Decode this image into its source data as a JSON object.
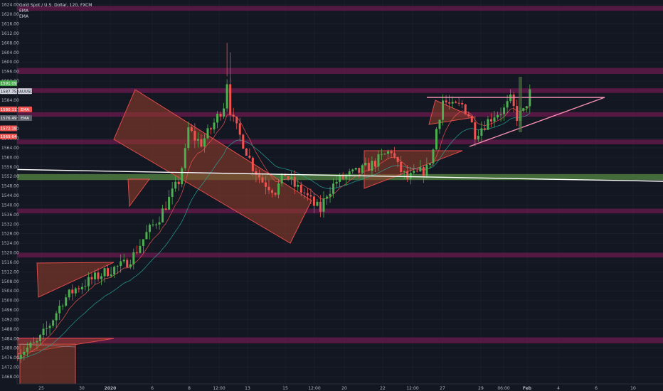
{
  "legend": {
    "symbol_title": "Gold Spot / U.S. Dollar, 120, FXCM",
    "ema1": "EMA",
    "ema2": "EMA"
  },
  "price_labels": [
    {
      "text": "1591.09",
      "price": 1591.09,
      "bg": "#4caf50",
      "fg": "#ffffff"
    },
    {
      "text": "1587.75",
      "price": 1587.75,
      "bg": "#d1d4dc",
      "fg": "#131722"
    },
    {
      "text": "XAUUSD",
      "price": 1587.75,
      "bg": "#d1d4dc",
      "fg": "#131722"
    },
    {
      "text": "1580.11",
      "price": 1580.11,
      "bg": "#ef5350",
      "fg": "#ffffff"
    },
    {
      "text": "EMA",
      "price": 1580.11,
      "bg": "#ef5350",
      "fg": "#ffffff"
    },
    {
      "text": "1576.49",
      "price": 1576.49,
      "bg": "#5d606b",
      "fg": "#ffffff"
    },
    {
      "text": "EMA",
      "price": 1576.49,
      "bg": "#5d606b",
      "fg": "#ffffff"
    },
    {
      "text": "1572.18",
      "price": 1572.18,
      "bg": "#ef5350",
      "fg": "#ffffff"
    },
    {
      "text": "1569.64",
      "price": 1569.64,
      "bg": "#ef5350",
      "fg": "#ffffff"
    }
  ],
  "colors": {
    "background": "#131722",
    "grid": "#1f2330",
    "up_candle": "#4caf50",
    "down_candle": "#ef5350",
    "zone_purple": "#6a1b4d",
    "zone_green": "#4e7a3e",
    "pattern_fill": "#8d3a2a",
    "pattern_line": "#e04a4a",
    "ema_fast": "#ef5350",
    "ema_slow": "#26a69a"
  },
  "chart_data": {
    "type": "candlestick",
    "title": "Gold Spot / U.S. Dollar, 120, FXCM",
    "y_ticks": [
      1624,
      1620,
      1616,
      1612,
      1608,
      1604,
      1600,
      1596,
      1592,
      1588,
      1584,
      1580,
      1576,
      1572,
      1568,
      1564,
      1560,
      1556,
      1552,
      1548,
      1544,
      1540,
      1536,
      1532,
      1528,
      1524,
      1520,
      1516,
      1512,
      1508,
      1504,
      1500,
      1496,
      1492,
      1488,
      1484,
      1480,
      1476,
      1472,
      1468
    ],
    "y_tick_labels": [
      "1624.00",
      "1620.00",
      "1616.00",
      "1612.00",
      "1608.00",
      "1604.00",
      "1600.00",
      "1596.00",
      "1592.00",
      "1588.00",
      "1584.00",
      "1580.00",
      "1576.00",
      "1572.00",
      "1568.00",
      "1564.00",
      "1560.00",
      "1556.00",
      "1552.00",
      "1548.00",
      "1544.00",
      "1540.00",
      "1536.00",
      "1532.00",
      "1528.00",
      "1524.00",
      "1520.00",
      "1516.00",
      "1512.00",
      "1508.00",
      "1504.00",
      "1500.00",
      "1496.00",
      "1492.00",
      "1488.00",
      "1484.00",
      "1480.00",
      "1476.00",
      "1472.00",
      "1468.00"
    ],
    "ylim": [
      1465,
      1626
    ],
    "x_ticks": [
      {
        "label": "25",
        "bold": false
      },
      {
        "label": "30",
        "bold": false
      },
      {
        "label": "2020",
        "bold": true
      },
      {
        "label": "6",
        "bold": false
      },
      {
        "label": "8",
        "bold": false
      },
      {
        "label": "12:00",
        "bold": false
      },
      {
        "label": "13",
        "bold": false
      },
      {
        "label": "15",
        "bold": false
      },
      {
        "label": "12:00",
        "bold": false
      },
      {
        "label": "20",
        "bold": false
      },
      {
        "label": "22",
        "bold": false
      },
      {
        "label": "12:00",
        "bold": false
      },
      {
        "label": "27",
        "bold": false
      },
      {
        "label": "29",
        "bold": false
      },
      {
        "label": "06:00",
        "bold": false
      },
      {
        "label": "Feb",
        "bold": true
      },
      {
        "label": "4",
        "bold": false
      },
      {
        "label": "6",
        "bold": false
      },
      {
        "label": "10",
        "bold": false
      }
    ],
    "zones_purple": [
      [
        1621.5,
        1623.5
      ],
      [
        1595.0,
        1597.5
      ],
      [
        1587.0,
        1589.0
      ],
      [
        1577.0,
        1579.0
      ],
      [
        1565.5,
        1567.5
      ],
      [
        1536.5,
        1538.5
      ],
      [
        1518.0,
        1520.0
      ],
      [
        1482.0,
        1484.5
      ]
    ],
    "zone_green": [
      1550.5,
      1553.0
    ],
    "candle_keypoints": [
      [
        0,
        1478
      ],
      [
        6,
        1482
      ],
      [
        10,
        1490
      ],
      [
        14,
        1500
      ],
      [
        18,
        1505
      ],
      [
        22,
        1508
      ],
      [
        26,
        1511
      ],
      [
        29,
        1513
      ],
      [
        33,
        1515
      ],
      [
        36,
        1519
      ],
      [
        40,
        1528
      ],
      [
        44,
        1535
      ],
      [
        48,
        1545
      ],
      [
        50,
        1550
      ],
      [
        52,
        1562
      ],
      [
        53,
        1572
      ],
      [
        55,
        1568
      ],
      [
        57,
        1566
      ],
      [
        60,
        1572
      ],
      [
        62,
        1577
      ],
      [
        64,
        1582
      ],
      [
        65,
        1592
      ],
      [
        66,
        1580
      ],
      [
        67,
        1575
      ],
      [
        70,
        1566
      ],
      [
        73,
        1556
      ],
      [
        76,
        1550
      ],
      [
        80,
        1546
      ],
      [
        83,
        1553
      ],
      [
        86,
        1548
      ],
      [
        89,
        1545
      ],
      [
        92,
        1540
      ],
      [
        94,
        1538
      ],
      [
        96,
        1545
      ],
      [
        99,
        1550
      ],
      [
        102,
        1552
      ],
      [
        106,
        1554
      ],
      [
        110,
        1557
      ],
      [
        114,
        1561
      ],
      [
        116,
        1563
      ],
      [
        118,
        1556
      ],
      [
        121,
        1551
      ],
      [
        124,
        1553
      ],
      [
        127,
        1555
      ],
      [
        129,
        1563
      ],
      [
        130,
        1572
      ],
      [
        132,
        1584
      ],
      [
        135,
        1581
      ],
      [
        138,
        1582
      ],
      [
        140,
        1578
      ],
      [
        142,
        1570
      ],
      [
        145,
        1574
      ],
      [
        148,
        1578
      ],
      [
        151,
        1580
      ],
      [
        153,
        1584
      ],
      [
        155,
        1577
      ],
      [
        157,
        1579
      ],
      [
        159,
        1587
      ],
      [
        160,
        1588
      ]
    ]
  }
}
